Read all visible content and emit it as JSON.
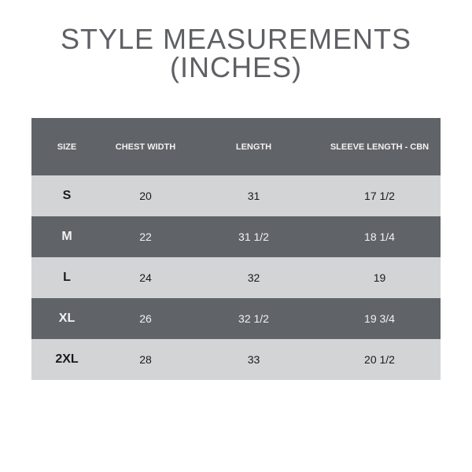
{
  "title": {
    "line1": "STYLE MEASUREMENTS",
    "line2": "(INCHES)"
  },
  "table": {
    "headers": [
      "SIZE",
      "CHEST WIDTH",
      "LENGTH",
      "SLEEVE LENGTH - CBN"
    ],
    "rows": [
      [
        "S",
        "20",
        "31",
        "17 1/2"
      ],
      [
        "M",
        "22",
        "31 1/2",
        "18 1/4"
      ],
      [
        "L",
        "24",
        "32",
        "19"
      ],
      [
        "XL",
        "26",
        "32 1/2",
        "19 3/4"
      ],
      [
        "2XL",
        "28",
        "33",
        "20 1/2"
      ]
    ]
  },
  "colors": {
    "dark": "#606368",
    "light": "#d3d4d6",
    "title": "#5f6064"
  }
}
